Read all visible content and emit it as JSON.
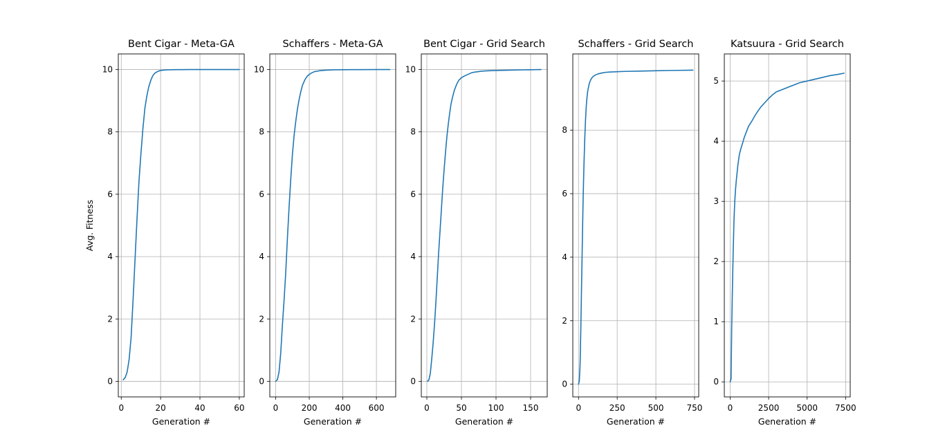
{
  "figure": {
    "shared_ylabel": "Avg. Fitness"
  },
  "chart_data": [
    {
      "type": "line",
      "title": "Bent Cigar - Meta-GA",
      "xlabel": "Generation #",
      "ylabel": "Avg. Fitness",
      "grid": true,
      "line_color": "#1f77b4",
      "xlim": [
        -1.5,
        62.5
      ],
      "ylim": [
        -0.5,
        10.5
      ],
      "xticks": [
        0,
        20,
        40,
        60
      ],
      "yticks": [
        0,
        2,
        4,
        6,
        8,
        10
      ],
      "series": [
        {
          "x": [
            1,
            2,
            3,
            4,
            5,
            6,
            7,
            8,
            9,
            10,
            11,
            12,
            13,
            14,
            15,
            16,
            17,
            18,
            19,
            20,
            22,
            24,
            26,
            28,
            30,
            35,
            40,
            45,
            50,
            55,
            60
          ],
          "y": [
            0.05,
            0.12,
            0.3,
            0.7,
            1.4,
            2.6,
            3.9,
            5.2,
            6.4,
            7.3,
            8.1,
            8.75,
            9.15,
            9.45,
            9.65,
            9.8,
            9.88,
            9.92,
            9.95,
            9.97,
            9.985,
            9.99,
            9.995,
            9.997,
            9.998,
            9.999,
            10.0,
            10.0,
            10.0,
            10.0,
            10.0
          ]
        }
      ]
    },
    {
      "type": "line",
      "title": "Schaffers - Meta-GA",
      "xlabel": "Generation #",
      "ylabel": "",
      "grid": true,
      "line_color": "#1f77b4",
      "xlim": [
        -35,
        715
      ],
      "ylim": [
        -0.5,
        10.5
      ],
      "xticks": [
        0,
        200,
        400,
        600
      ],
      "yticks": [
        0,
        2,
        4,
        6,
        8,
        10
      ],
      "series": [
        {
          "x": [
            0,
            10,
            20,
            30,
            40,
            50,
            60,
            70,
            80,
            90,
            100,
            110,
            120,
            130,
            140,
            150,
            160,
            175,
            190,
            210,
            230,
            260,
            300,
            350,
            400,
            500,
            600,
            680
          ],
          "y": [
            0.0,
            0.05,
            0.3,
            0.9,
            1.8,
            2.6,
            3.5,
            4.6,
            5.6,
            6.5,
            7.3,
            7.9,
            8.35,
            8.75,
            9.05,
            9.3,
            9.5,
            9.68,
            9.8,
            9.88,
            9.93,
            9.96,
            9.98,
            9.99,
            9.995,
            9.998,
            10.0,
            10.0
          ]
        }
      ]
    },
    {
      "type": "line",
      "title": "Bent Cigar - Grid Search",
      "xlabel": "Generation #",
      "ylabel": "",
      "grid": true,
      "line_color": "#1f77b4",
      "xlim": [
        -8,
        174
      ],
      "ylim": [
        -0.5,
        10.5
      ],
      "xticks": [
        0,
        50,
        100,
        150
      ],
      "yticks": [
        0,
        2,
        4,
        6,
        8,
        10
      ],
      "series": [
        {
          "x": [
            1,
            3,
            5,
            7,
            9,
            11,
            13,
            15,
            17,
            19,
            21,
            23,
            25,
            27,
            29,
            31,
            33,
            35,
            37,
            40,
            43,
            46,
            50,
            55,
            60,
            65,
            70,
            80,
            90,
            100,
            120,
            140,
            165
          ],
          "y": [
            0.0,
            0.05,
            0.25,
            0.7,
            1.2,
            1.8,
            2.5,
            3.3,
            4.1,
            4.8,
            5.5,
            6.2,
            6.8,
            7.35,
            7.85,
            8.25,
            8.6,
            8.9,
            9.1,
            9.35,
            9.52,
            9.65,
            9.74,
            9.8,
            9.85,
            9.9,
            9.92,
            9.95,
            9.96,
            9.97,
            9.98,
            9.99,
            10.0
          ]
        }
      ]
    },
    {
      "type": "line",
      "title": "Schaffers - Grid Search",
      "xlabel": "Generation #",
      "ylabel": "",
      "grid": true,
      "line_color": "#1f77b4",
      "xlim": [
        -37,
        777
      ],
      "ylim": [
        -0.4,
        10.4
      ],
      "xticks": [
        0,
        250,
        500,
        750
      ],
      "yticks": [
        0,
        2,
        4,
        6,
        8
      ],
      "series": [
        {
          "x": [
            0,
            5,
            10,
            15,
            20,
            25,
            30,
            35,
            40,
            45,
            50,
            55,
            60,
            70,
            80,
            90,
            100,
            110,
            125,
            150,
            175,
            200,
            250,
            300,
            400,
            500,
            600,
            740
          ],
          "y": [
            0.0,
            0.1,
            0.6,
            1.8,
            3.2,
            4.6,
            5.9,
            6.9,
            7.7,
            8.3,
            8.75,
            9.05,
            9.25,
            9.48,
            9.6,
            9.67,
            9.71,
            9.74,
            9.77,
            9.8,
            9.82,
            9.83,
            9.84,
            9.85,
            9.86,
            9.87,
            9.88,
            9.89
          ]
        }
      ]
    },
    {
      "type": "line",
      "title": "Katsuura - Grid Search",
      "xlabel": "Generation #",
      "ylabel": "",
      "grid": true,
      "line_color": "#1f77b4",
      "xlim": [
        -380,
        7800
      ],
      "ylim": [
        -0.25,
        5.45
      ],
      "xticks": [
        0,
        2500,
        5000,
        7500
      ],
      "yticks": [
        0,
        1,
        2,
        3,
        4,
        5
      ],
      "series": [
        {
          "x": [
            0,
            60,
            100,
            150,
            200,
            250,
            300,
            350,
            400,
            500,
            600,
            700,
            800,
            900,
            1000,
            1200,
            1400,
            1600,
            1800,
            2000,
            2250,
            2500,
            2750,
            3000,
            3500,
            4000,
            4500,
            5000,
            5500,
            6000,
            6500,
            7000,
            7400
          ],
          "y": [
            0.0,
            0.05,
            0.9,
            1.6,
            2.2,
            2.7,
            3.0,
            3.2,
            3.35,
            3.6,
            3.78,
            3.88,
            3.96,
            4.05,
            4.12,
            4.25,
            4.33,
            4.42,
            4.5,
            4.57,
            4.64,
            4.71,
            4.77,
            4.82,
            4.87,
            4.92,
            4.97,
            5.0,
            5.03,
            5.06,
            5.09,
            5.11,
            5.13
          ]
        }
      ]
    }
  ]
}
